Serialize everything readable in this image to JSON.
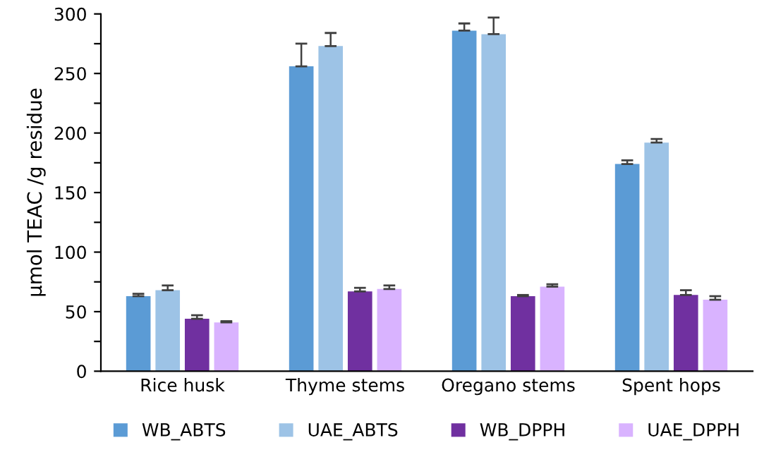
{
  "chart_data": {
    "type": "bar",
    "ylabel": "µmol TEAC /g residue",
    "categories": [
      "Rice husk",
      "Thyme stems",
      "Oregano stems",
      "Spent hops"
    ],
    "series": [
      {
        "name": "WB_ABTS",
        "color": "#5b9bd5",
        "values": [
          63,
          256,
          286,
          174
        ],
        "errors": [
          [
            63,
            65
          ],
          [
            256,
            275
          ],
          [
            286,
            292
          ],
          [
            174,
            177
          ]
        ]
      },
      {
        "name": "UAE_ABTS",
        "color": "#9dc3e6",
        "values": [
          68,
          273,
          283,
          192
        ],
        "errors": [
          [
            68,
            72
          ],
          [
            273,
            284
          ],
          [
            283,
            297
          ],
          [
            192,
            195
          ]
        ]
      },
      {
        "name": "WB_DPPH",
        "color": "#7030a0",
        "values": [
          44,
          67,
          63,
          64
        ],
        "errors": [
          [
            44,
            47
          ],
          [
            67,
            70
          ],
          [
            63,
            64
          ],
          [
            64,
            68
          ]
        ]
      },
      {
        "name": "UAE_DPPH",
        "color": "#d9b3ff",
        "values": [
          41,
          69,
          71,
          60
        ],
        "errors": [
          [
            41,
            42
          ],
          [
            69,
            72
          ],
          [
            71,
            73
          ],
          [
            60,
            63
          ]
        ]
      }
    ],
    "ylim": [
      0,
      300
    ],
    "yticks": [
      0,
      {
        "value": 25,
        "label": null
      },
      50,
      {
        "value": 75,
        "label": null
      },
      100,
      {
        "value": 125,
        "label": null
      },
      150,
      {
        "value": 175,
        "label": null
      },
      200,
      {
        "value": 225,
        "label": null
      },
      250,
      {
        "value": 275,
        "label": null
      },
      300
    ],
    "grid": false,
    "legend": "bottom"
  }
}
